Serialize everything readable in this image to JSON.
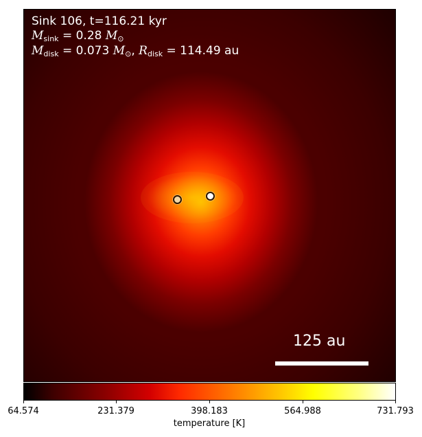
{
  "figure": {
    "title_line": "Sink 106, t=116.21 kyr",
    "mass_line": {
      "symbol": "M",
      "subscript": "sink",
      "text": " = 0.28 ",
      "unit_symbol": "M",
      "unit_subscript": "⊙"
    },
    "disk_line": {
      "symbol": "M",
      "subscript": "disk",
      "text": " = 0.073 ",
      "unit_symbol": "M",
      "unit_subscript": "⊙",
      "separator": ", ",
      "radius_symbol": "R",
      "radius_subscript": "disk",
      "radius_text": " = 114.49 au"
    },
    "scale_bar_label": "125 au",
    "colorbar": {
      "label": "temperature [K]",
      "ticks": [
        "64.574",
        "231.379",
        "398.183",
        "564.988",
        "731.793"
      ]
    }
  }
}
